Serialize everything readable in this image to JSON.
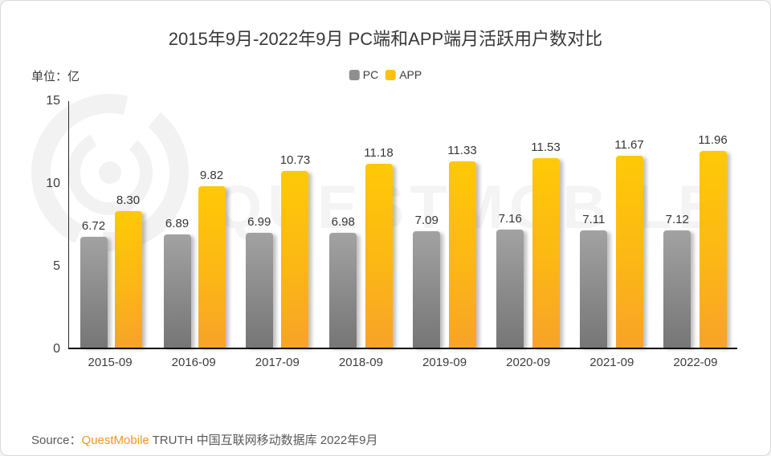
{
  "title": "2015年9月-2022年9月 PC端和APP端月活跃用户数对比",
  "unit_label": "单位：亿",
  "legend": [
    {
      "label": "PC",
      "color": "#8f8f8f"
    },
    {
      "label": "APP",
      "color": "#ffc20e"
    }
  ],
  "chart_data": {
    "type": "bar",
    "title": "2015年9月-2022年9月 PC端和APP端月活跃用户数对比",
    "unit": "亿",
    "categories": [
      "2015-09",
      "2016-09",
      "2017-09",
      "2018-09",
      "2019-09",
      "2020-09",
      "2021-09",
      "2022-09"
    ],
    "series": [
      {
        "name": "PC",
        "color": "#8f8f8f",
        "values": [
          6.72,
          6.89,
          6.99,
          6.98,
          7.09,
          7.16,
          7.11,
          7.12
        ]
      },
      {
        "name": "APP",
        "color": "#ffc20e",
        "values": [
          8.3,
          9.82,
          10.73,
          11.18,
          11.33,
          11.53,
          11.67,
          11.96
        ]
      }
    ],
    "ylim": [
      0,
      15
    ],
    "yticks": [
      0,
      5,
      10,
      15
    ],
    "grid": false,
    "legend_position": "top-center",
    "value_labels": true,
    "value_decimals": 2
  },
  "watermark": {
    "text": "QUESTMOBILE"
  },
  "source": {
    "prefix": "Source：",
    "brand": "QuestMobile",
    "brand_color": "#f7941e",
    "rest": " TRUTH 中国互联网移动数据库 2022年9月"
  }
}
